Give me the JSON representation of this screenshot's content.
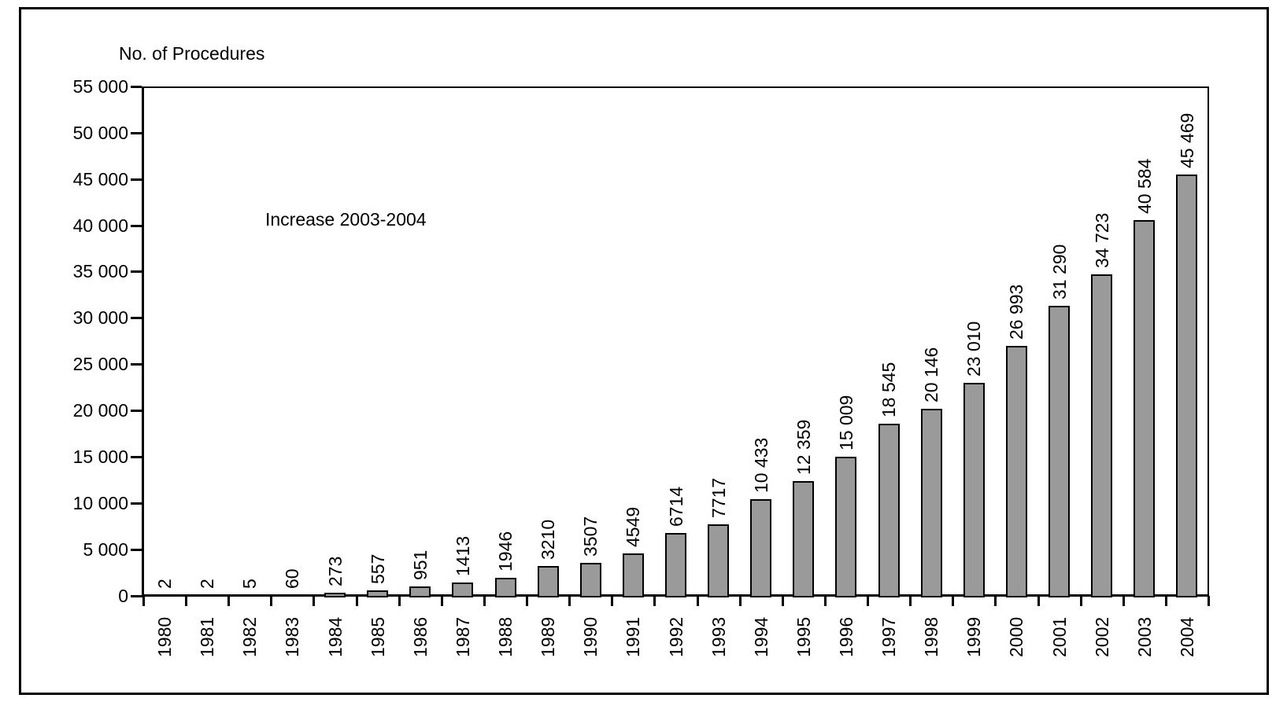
{
  "chart_data": {
    "type": "bar",
    "title": "No. of Procedures",
    "annotation": "Increase 2003-2004",
    "xlabel": "",
    "ylabel": "No. of Procedures",
    "categories": [
      "1980",
      "1981",
      "1982",
      "1983",
      "1984",
      "1985",
      "1986",
      "1987",
      "1988",
      "1989",
      "1990",
      "1991",
      "1992",
      "1993",
      "1994",
      "1995",
      "1996",
      "1997",
      "1998",
      "1999",
      "2000",
      "2001",
      "2002",
      "2003",
      "2004"
    ],
    "values": [
      2,
      2,
      5,
      60,
      273,
      557,
      951,
      1413,
      1946,
      3210,
      3507,
      4549,
      6714,
      7717,
      10433,
      12359,
      15009,
      18545,
      20146,
      23010,
      26993,
      31290,
      34723,
      40584,
      45469
    ],
    "bar_labels": [
      "2",
      "2",
      "5",
      "60",
      "273",
      "557",
      "951",
      "1413",
      "1946",
      "3210",
      "3507",
      "4549",
      "6714",
      "7717",
      "10 433",
      "12 359",
      "15 009",
      "18 545",
      "20 146",
      "23 010",
      "26 993",
      "31 290",
      "34 723",
      "40 584",
      "45 469"
    ],
    "ylim": [
      0,
      55000
    ],
    "ytick_step": 5000,
    "ytick_labels": [
      "0",
      "5 000",
      "10 000",
      "15 000",
      "20 000",
      "25 000",
      "30 000",
      "35 000",
      "40 000",
      "45 000",
      "50 000",
      "55 000"
    ],
    "grid": false,
    "legend": false,
    "bar_color": "#9a9a9a",
    "bar_border_color": "#000000",
    "axis_color": "#000000",
    "text_color": "#000000",
    "background_color": "#ffffff"
  }
}
